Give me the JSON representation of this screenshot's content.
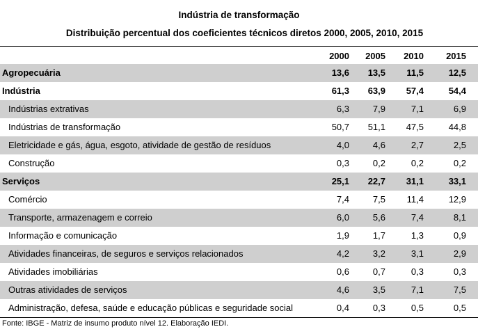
{
  "title": "Indústria de transformação",
  "subtitle": "Distribuição percentual dos coeficientes técnicos diretos  2000, 2005, 2010, 2015",
  "columns": [
    "2000",
    "2005",
    "2010",
    "2015"
  ],
  "rows": [
    {
      "label": "Agropecuária",
      "level": 0,
      "bold": true,
      "shade": true,
      "values": [
        "13,6",
        "13,5",
        "11,5",
        "12,5"
      ]
    },
    {
      "label": "Indústria",
      "level": 0,
      "bold": true,
      "shade": false,
      "values": [
        "61,3",
        "63,9",
        "57,4",
        "54,4"
      ]
    },
    {
      "label": "Indústrias extrativas",
      "level": 1,
      "bold": false,
      "shade": true,
      "values": [
        "6,3",
        "7,9",
        "7,1",
        "6,9"
      ]
    },
    {
      "label": "Indústrias de transformação",
      "level": 1,
      "bold": false,
      "shade": false,
      "values": [
        "50,7",
        "51,1",
        "47,5",
        "44,8"
      ]
    },
    {
      "label": "Eletricidade e gás, água, esgoto, atividade de gestão de resíduos",
      "level": 1,
      "bold": false,
      "shade": true,
      "values": [
        "4,0",
        "4,6",
        "2,7",
        "2,5"
      ]
    },
    {
      "label": "Construção",
      "level": 1,
      "bold": false,
      "shade": false,
      "values": [
        "0,3",
        "0,2",
        "0,2",
        "0,2"
      ]
    },
    {
      "label": "Serviços",
      "level": 0,
      "bold": true,
      "shade": true,
      "values": [
        "25,1",
        "22,7",
        "31,1",
        "33,1"
      ]
    },
    {
      "label": "Comércio",
      "level": 1,
      "bold": false,
      "shade": false,
      "values": [
        "7,4",
        "7,5",
        "11,4",
        "12,9"
      ]
    },
    {
      "label": "Transporte, armazenagem e correio",
      "level": 1,
      "bold": false,
      "shade": true,
      "values": [
        "6,0",
        "5,6",
        "7,4",
        "8,1"
      ]
    },
    {
      "label": "Informação e comunicação",
      "level": 1,
      "bold": false,
      "shade": false,
      "values": [
        "1,9",
        "1,7",
        "1,3",
        "0,9"
      ]
    },
    {
      "label": "Atividades financeiras, de seguros e serviços relacionados",
      "level": 1,
      "bold": false,
      "shade": true,
      "values": [
        "4,2",
        "3,2",
        "3,1",
        "2,9"
      ]
    },
    {
      "label": "Atividades imobiliárias",
      "level": 1,
      "bold": false,
      "shade": false,
      "values": [
        "0,6",
        "0,7",
        "0,3",
        "0,3"
      ]
    },
    {
      "label": "Outras atividades de serviços",
      "level": 1,
      "bold": false,
      "shade": true,
      "values": [
        "4,6",
        "3,5",
        "7,1",
        "7,5"
      ]
    },
    {
      "label": "Administração, defesa, saúde e educação públicas e seguridade social",
      "level": 1,
      "bold": false,
      "shade": false,
      "values": [
        "0,4",
        "0,3",
        "0,5",
        "0,5"
      ]
    }
  ],
  "source": "Fonte:  IBGE - Matriz de insumo produto nível 12. Elaboração IEDI.",
  "colors": {
    "shade": "#cfcfcf",
    "rule": "#000000"
  }
}
